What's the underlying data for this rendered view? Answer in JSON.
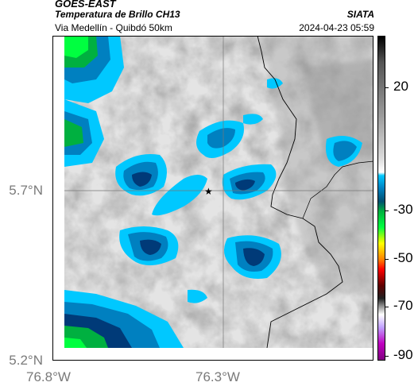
{
  "header": {
    "line1": "GOES-EAST",
    "line2": "Temperatura de Brillo CH13",
    "line3": "Via Medellín - Quibdó 50km",
    "right1": "SIATA",
    "right2": "2024-04-23 05:59"
  },
  "axes": {
    "lat_labels": [
      "5.7°N",
      "5.2°N"
    ],
    "lon_labels": [
      "76.8°W",
      "76.3°W"
    ]
  },
  "colorbar": {
    "labels": [
      "20",
      "-30",
      "-50",
      "-70",
      "-90"
    ]
  },
  "marker": {
    "symbol": "★",
    "name": "location-star"
  },
  "colors": {
    "cloud_deep": "#003a78",
    "cloud_mid": "#0080c0",
    "cloud_edge": "#00c8ff",
    "cold_green": "#00ff40"
  }
}
